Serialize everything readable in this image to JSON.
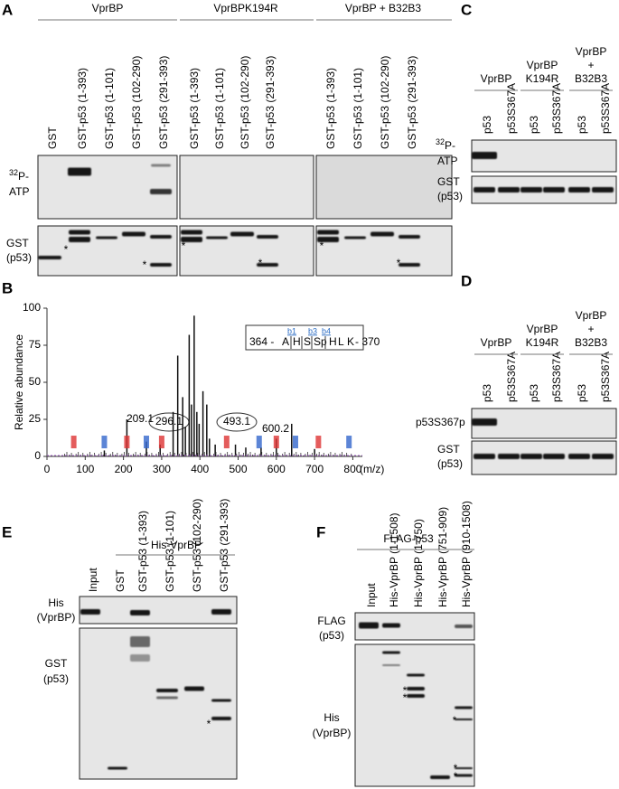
{
  "panels": {
    "A": {
      "label": "A",
      "groups": [
        "VprBP",
        "VprBPK194R",
        "VprBP + B32B3"
      ],
      "lanes_1": [
        "GST",
        "GST-p53 (1-393)",
        "GST-p53 (1-101)",
        "GST-p53 (102-290)",
        "GST-p53 (291-393)"
      ],
      "lanes_2": [
        "GST-p53 (1-393)",
        "GST-p53 (1-101)",
        "GST-p53 (102-290)",
        "GST-p53 (291-393)"
      ],
      "lanes_3": [
        "GST-p53 (1-393)",
        "GST-p53 (1-101)",
        "GST-p53 (102-290)",
        "GST-p53 (291-393)"
      ],
      "row1_sup": "32",
      "row1": "P-",
      "row1b": "ATP",
      "row2": "GST",
      "row2b": "(p53)",
      "asterisk": "*"
    },
    "B": {
      "label": "B",
      "ylabel": "Relative abundance",
      "xlabel": "(m/z)",
      "xlim": [
        0,
        825
      ],
      "ylim": [
        0,
        100
      ],
      "yticks": [
        0,
        25,
        50,
        75,
        100
      ],
      "xticks": [
        0,
        100,
        200,
        300,
        400,
        500,
        600,
        700,
        800
      ],
      "peak_labels": [
        "209.1",
        "296.1",
        "493.1",
        "600.2"
      ],
      "peptide_start": "364 -",
      "residues": [
        "A",
        "H",
        "S",
        "Sp",
        "H",
        "L",
        "K"
      ],
      "peptide_end": "- 370",
      "ions": [
        "b1",
        "b3",
        "b4"
      ]
    },
    "C": {
      "label": "C",
      "groups": [
        [
          "VprBP"
        ],
        [
          "VprBP",
          "K194R"
        ],
        [
          "VprBP",
          "+",
          "B32B3"
        ]
      ],
      "lanes": [
        "p53",
        "p53S367A"
      ],
      "row1_sup": "32",
      "row1": "P-",
      "row1b": "ATP",
      "row2": "GST",
      "row2b": "(p53)"
    },
    "D": {
      "label": "D",
      "groups": [
        [
          "VprBP"
        ],
        [
          "VprBP",
          "K194R"
        ],
        [
          "VprBP",
          "+",
          "B32B3"
        ]
      ],
      "lanes": [
        "p53",
        "p53S367A"
      ],
      "row1": "p53S367p",
      "row2": "GST",
      "row2b": "(p53)"
    },
    "E": {
      "label": "E",
      "header": "His-VprBP",
      "lanes": [
        "Input",
        "GST",
        "GST-p53 (1-393)",
        "GST-p53 (1-101)",
        "GST-p53 (102-290)",
        "GST-p53 (291-393)"
      ],
      "row1": "His",
      "row1b": "(VprBP)",
      "row2": "GST",
      "row2b": "(p53)",
      "asterisk": "*"
    },
    "F": {
      "label": "F",
      "header": "FLAG-p53",
      "lanes": [
        "Input",
        "His-VprBP (1-1508)",
        "His-VprBP (1-750)",
        "His-VprBP (751-909)",
        "His-VprBP (910-1508)"
      ],
      "row1": "FLAG",
      "row1b": "(p53)",
      "row2": "His",
      "row2b": "(VprBP)",
      "asterisk": "*"
    }
  }
}
